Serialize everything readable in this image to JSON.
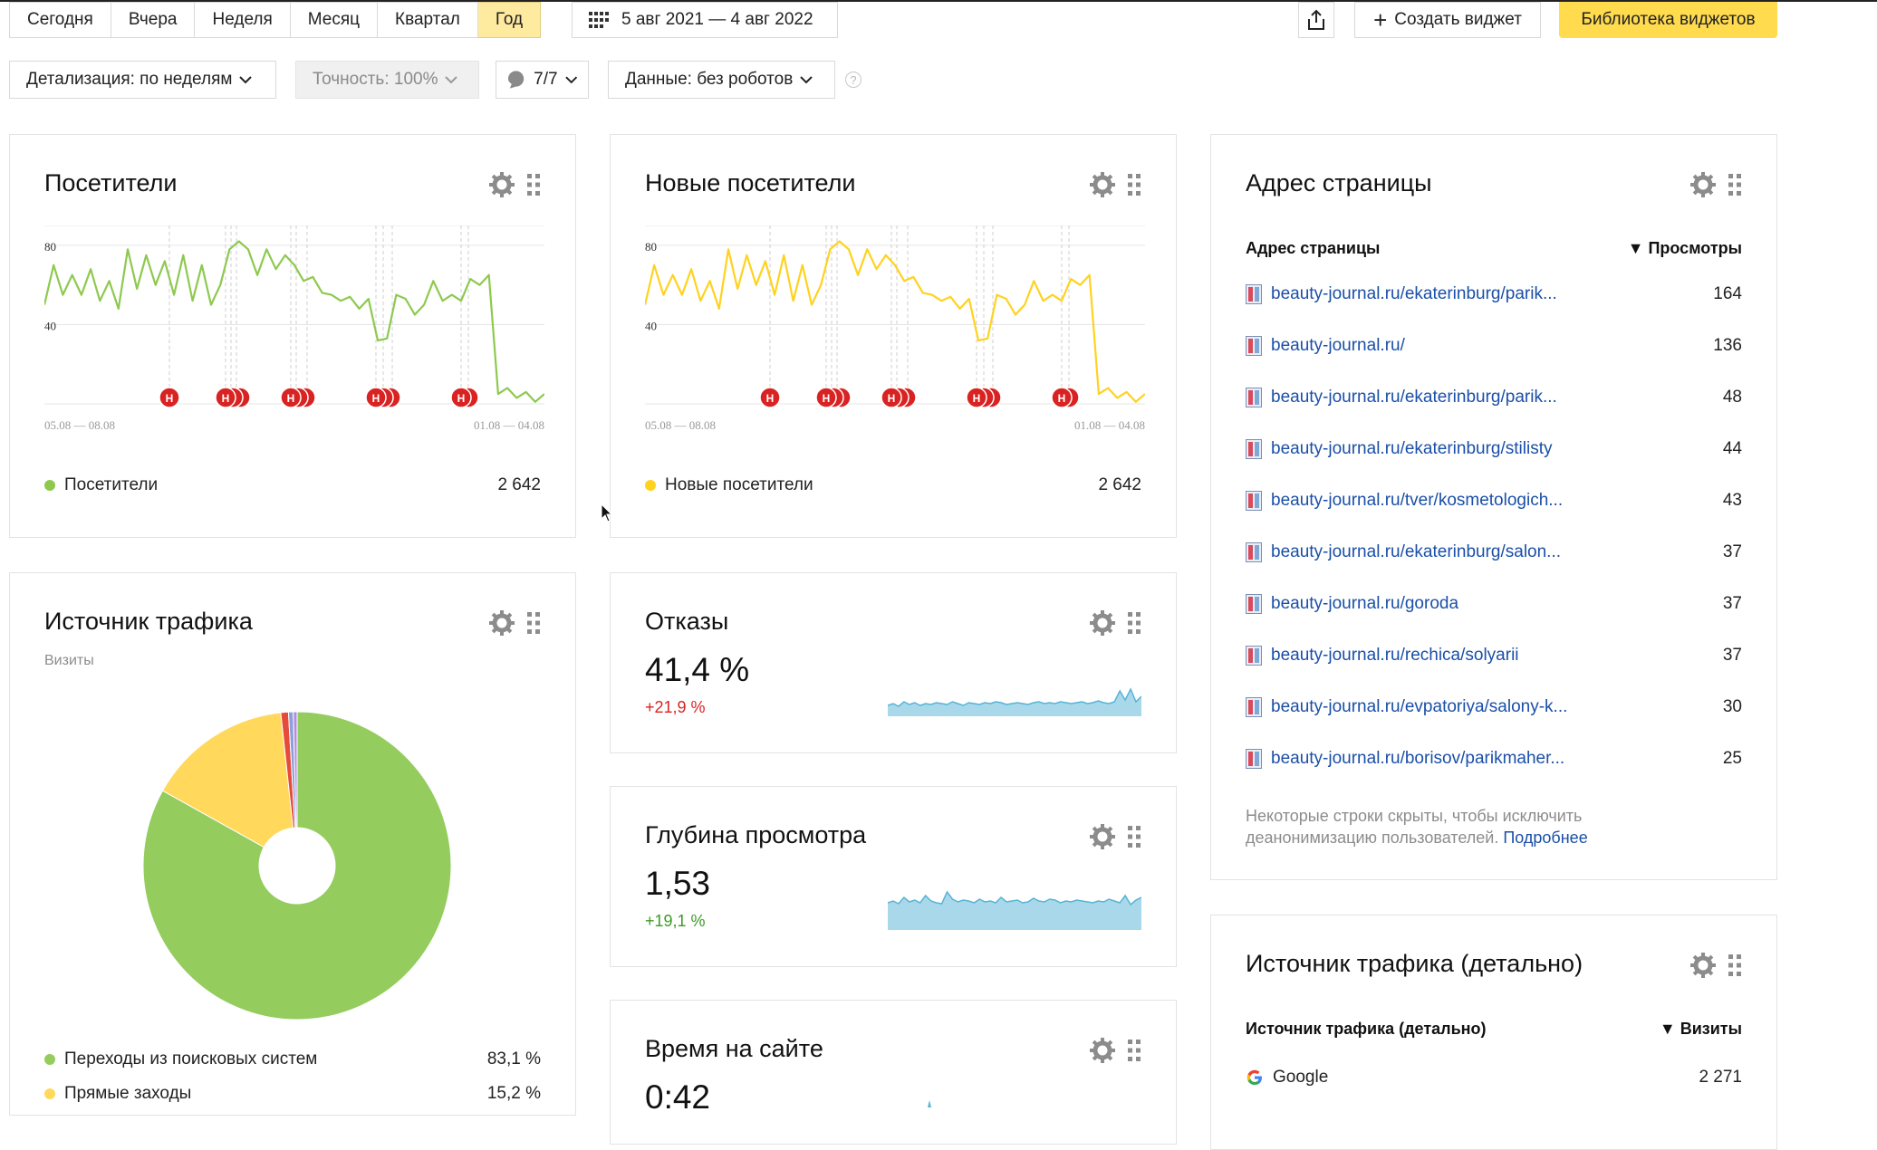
{
  "toolbar": {
    "periods": [
      "Сегодня",
      "Вчера",
      "Неделя",
      "Месяц",
      "Квартал",
      "Год"
    ],
    "active_period": "Год",
    "date_range": "5 авг 2021 — 4 авг 2022",
    "create_widget": "Создать виджет",
    "widget_library": "Библиотека виджетов"
  },
  "filters": {
    "detail": "Детализация: по неделям",
    "accuracy": "Точность: 100%",
    "segments": "7/7",
    "data": "Данные: без роботов",
    "help": "?"
  },
  "colors": {
    "green": "#8ec94e",
    "yellow": "#ffd21f",
    "spark_fill": "#a9d8ea",
    "spark_line": "#56b4d6",
    "red": "#d92322",
    "link": "#1a4fa8",
    "accent": "#ffdb4d"
  },
  "visitors": {
    "title": "Посетители",
    "legend": "Посетители",
    "total": "2 642",
    "axis_top": "80",
    "axis_mid": "40",
    "range_start": "05.08 — 08.08",
    "range_end": "01.08 — 04.08",
    "marker_label": "Н"
  },
  "new_visitors": {
    "title": "Новые посетители",
    "legend": "Новые посетители",
    "total": "2 642",
    "axis_top": "80",
    "axis_mid": "40",
    "range_start": "05.08 — 08.08",
    "range_end": "01.08 — 04.08",
    "marker_label": "Н"
  },
  "traffic": {
    "title": "Источник трафика",
    "subtitle": "Визиты",
    "items": [
      {
        "label": "Переходы из поисковых систем",
        "value": "83,1 %",
        "color": "#94cc5e"
      },
      {
        "label": "Прямые заходы",
        "value": "15,2 %",
        "color": "#ffd85c"
      }
    ]
  },
  "bounce": {
    "title": "Отказы",
    "value": "41,4 %",
    "delta": "+21,9 %",
    "delta_color": "#d92322"
  },
  "depth": {
    "title": "Глубина просмотра",
    "value": "1,53",
    "delta": "+19,1 %",
    "delta_color": "#3a9d23"
  },
  "time_on_site": {
    "title": "Время на сайте",
    "value": "0:42"
  },
  "pages": {
    "title": "Адрес страницы",
    "col_name": "Адрес страницы",
    "col_value": "▼ Просмотры",
    "rows": [
      {
        "url": "beauty-journal.ru/ekaterinburg/parik...",
        "views": "164"
      },
      {
        "url": "beauty-journal.ru/",
        "views": "136"
      },
      {
        "url": "beauty-journal.ru/ekaterinburg/parik...",
        "views": "48"
      },
      {
        "url": "beauty-journal.ru/ekaterinburg/stilisty",
        "views": "44"
      },
      {
        "url": "beauty-journal.ru/tver/kosmetologich...",
        "views": "43"
      },
      {
        "url": "beauty-journal.ru/ekaterinburg/salon...",
        "views": "37"
      },
      {
        "url": "beauty-journal.ru/goroda",
        "views": "37"
      },
      {
        "url": "beauty-journal.ru/rechica/solyarii",
        "views": "37"
      },
      {
        "url": "beauty-journal.ru/evpatoriya/salony-k...",
        "views": "30"
      },
      {
        "url": "beauty-journal.ru/borisov/parikmaher...",
        "views": "25"
      }
    ],
    "note": "Некоторые строки скрыты, чтобы исключить деанонимизацию пользователей.",
    "note_link": "Подробнее"
  },
  "traffic_detail": {
    "title": "Источник трафика (детально)",
    "col_name": "Источник трафика (детально)",
    "col_value": "▼ Визиты",
    "rows": [
      {
        "label": "Google",
        "value": "2 271"
      }
    ]
  },
  "chart_data": [
    {
      "type": "line",
      "title": "Посетители",
      "ylim": [
        0,
        90
      ],
      "yticks": [
        40,
        80
      ],
      "xticks": [
        "05.08 — 08.08",
        "01.08 — 04.08"
      ],
      "series": [
        {
          "name": "Посетители",
          "values": [
            50,
            70,
            55,
            65,
            55,
            68,
            52,
            62,
            48,
            78,
            58,
            75,
            60,
            72,
            55,
            75,
            52,
            70,
            50,
            60,
            78,
            82,
            78,
            65,
            78,
            68,
            75,
            70,
            62,
            64,
            56,
            55,
            52,
            54,
            48,
            53,
            32,
            33,
            55,
            53,
            45,
            50,
            62,
            52,
            55,
            52,
            63,
            60,
            65,
            5,
            8,
            3,
            6,
            1,
            5
          ]
        }
      ]
    },
    {
      "type": "line",
      "title": "Новые посетители",
      "ylim": [
        0,
        90
      ],
      "yticks": [
        40,
        80
      ],
      "xticks": [
        "05.08 — 08.08",
        "01.08 — 04.08"
      ],
      "series": [
        {
          "name": "Новые посетители",
          "values": [
            50,
            70,
            55,
            65,
            55,
            68,
            52,
            62,
            48,
            78,
            58,
            75,
            60,
            72,
            55,
            75,
            52,
            70,
            50,
            60,
            78,
            82,
            78,
            65,
            78,
            68,
            75,
            70,
            62,
            64,
            56,
            55,
            52,
            54,
            48,
            53,
            32,
            33,
            55,
            53,
            45,
            50,
            62,
            52,
            55,
            52,
            63,
            60,
            65,
            5,
            8,
            3,
            6,
            1,
            5
          ]
        }
      ]
    },
    {
      "type": "pie",
      "title": "Источник трафика",
      "slices": [
        {
          "label": "Переходы из поисковых систем",
          "value": 83.1,
          "color": "#94cc5e"
        },
        {
          "label": "Прямые заходы",
          "value": 15.2,
          "color": "#ffd85c"
        },
        {
          "label": "",
          "value": 0.8,
          "color": "#e64a3a"
        },
        {
          "label": "",
          "value": 0.5,
          "color": "#8fa0d8"
        },
        {
          "label": "",
          "value": 0.4,
          "color": "#b58de0"
        }
      ]
    }
  ]
}
